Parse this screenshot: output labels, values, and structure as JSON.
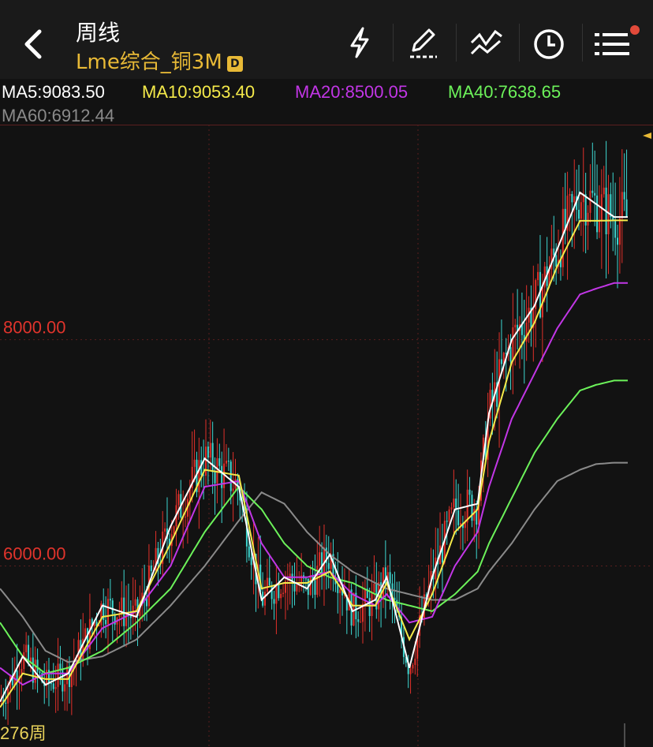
{
  "header": {
    "title": "周线",
    "subtitle": "Lme综合_铜3M",
    "badge": "D",
    "icons": [
      "back-chevron-icon",
      "flash-icon",
      "draw-pen-icon",
      "indicator-wave-icon",
      "clock-icon",
      "menu-list-icon"
    ]
  },
  "ma_legend": [
    {
      "key": "MA5",
      "text": "MA5:9083.50",
      "color": "#ffffff"
    },
    {
      "key": "MA10",
      "text": "MA10:9053.40",
      "color": "#f5ea4a"
    },
    {
      "key": "MA20",
      "text": "MA20:8500.05",
      "color": "#c236e6"
    },
    {
      "key": "MA40",
      "text": "MA40:7638.65",
      "color": "#6cf25a"
    },
    {
      "key": "MA60",
      "text": "MA60:6912.44",
      "color": "#8a8a8a"
    }
  ],
  "footer": {
    "period_label": "276周"
  },
  "colors": {
    "up": "#e0302a",
    "down": "#3ed6d0",
    "grid": "#5a1e1e",
    "axis_label": "#e0342c"
  },
  "chart_data": {
    "type": "line",
    "periods": 276,
    "y_labels": [
      "8000.00",
      "6000.00"
    ],
    "y_ticks": [
      8000,
      6000
    ],
    "ylim": [
      4400,
      9900
    ],
    "price_low": 4500,
    "price_high": 9700,
    "series": [
      {
        "name": "MA5",
        "color": "#ffffff",
        "x": [
          0,
          10,
          20,
          30,
          45,
          60,
          75,
          90,
          105,
          115,
          125,
          135,
          145,
          155,
          165,
          170,
          180,
          190,
          200,
          210,
          215,
          225,
          235,
          245,
          255,
          262,
          270,
          276
        ],
        "values": [
          4800,
          5200,
          4950,
          5050,
          5650,
          5550,
          6350,
          6950,
          6700,
          5700,
          5900,
          5800,
          6100,
          5600,
          5700,
          5900,
          5100,
          5900,
          6500,
          6550,
          7350,
          8000,
          8300,
          8800,
          9300,
          9200,
          9083.5,
          9083.5
        ]
      },
      {
        "name": "MA10",
        "color": "#f5ea4a",
        "x": [
          0,
          10,
          20,
          30,
          45,
          60,
          75,
          90,
          105,
          115,
          125,
          135,
          145,
          155,
          165,
          170,
          180,
          190,
          200,
          210,
          215,
          225,
          235,
          245,
          255,
          262,
          270,
          276
        ],
        "values": [
          4750,
          5050,
          5000,
          5000,
          5550,
          5600,
          6200,
          6850,
          6800,
          5800,
          5850,
          5850,
          5950,
          5650,
          5650,
          5850,
          5350,
          5750,
          6300,
          6500,
          7100,
          7800,
          8150,
          8650,
          9050,
          9050,
          9053.4,
          9053.4
        ]
      },
      {
        "name": "MA20",
        "color": "#c236e6",
        "x": [
          0,
          10,
          20,
          30,
          45,
          60,
          75,
          90,
          105,
          115,
          125,
          135,
          145,
          155,
          165,
          170,
          180,
          190,
          200,
          210,
          215,
          225,
          235,
          245,
          255,
          262,
          270,
          276
        ],
        "values": [
          5100,
          4950,
          5050,
          5050,
          5450,
          5600,
          6000,
          6700,
          6750,
          6200,
          5900,
          5900,
          5950,
          5750,
          5650,
          5750,
          5500,
          5550,
          6000,
          6300,
          6700,
          7300,
          7700,
          8100,
          8400,
          8450,
          8500.05,
          8500.05
        ]
      },
      {
        "name": "MA40",
        "color": "#6cf25a",
        "x": [
          0,
          10,
          20,
          30,
          45,
          60,
          75,
          90,
          105,
          115,
          125,
          135,
          145,
          155,
          165,
          170,
          180,
          190,
          200,
          210,
          215,
          225,
          235,
          245,
          255,
          262,
          270,
          276
        ],
        "values": [
          5500,
          5200,
          5050,
          5100,
          5250,
          5500,
          5800,
          6300,
          6700,
          6500,
          6200,
          6000,
          5900,
          5850,
          5750,
          5700,
          5650,
          5600,
          5750,
          5950,
          6200,
          6600,
          7000,
          7300,
          7550,
          7600,
          7638.65,
          7638.65
        ]
      },
      {
        "name": "MA60",
        "color": "#8a8a8a",
        "x": [
          0,
          10,
          20,
          30,
          45,
          60,
          75,
          90,
          105,
          115,
          125,
          135,
          145,
          155,
          165,
          170,
          180,
          190,
          200,
          210,
          215,
          225,
          235,
          245,
          255,
          262,
          270,
          276
        ],
        "values": [
          5800,
          5550,
          5250,
          5150,
          5200,
          5350,
          5650,
          6000,
          6400,
          6650,
          6550,
          6300,
          6100,
          5950,
          5850,
          5800,
          5750,
          5700,
          5700,
          5800,
          5950,
          6200,
          6500,
          6750,
          6850,
          6900,
          6912.44,
          6912.44
        ]
      }
    ]
  }
}
